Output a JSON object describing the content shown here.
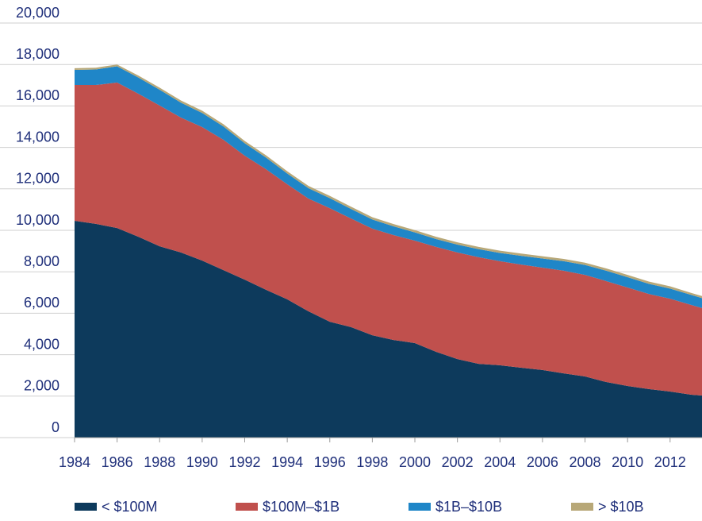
{
  "chart_data": {
    "type": "stacked_area",
    "x": [
      1984,
      1985,
      1986,
      1987,
      1988,
      1989,
      1990,
      1991,
      1992,
      1993,
      1994,
      1995,
      1996,
      1997,
      1998,
      1999,
      2000,
      2001,
      2002,
      2003,
      2004,
      2005,
      2006,
      2007,
      2008,
      2009,
      2010,
      2011,
      2012,
      2013,
      2013.5
    ],
    "series": [
      {
        "name": "< $100M",
        "color": "#0d3a5c",
        "values": [
          10460,
          10310,
          10110,
          9690,
          9230,
          8930,
          8540,
          8080,
          7620,
          7130,
          6670,
          6090,
          5590,
          5330,
          4940,
          4710,
          4560,
          4140,
          3790,
          3560,
          3490,
          3370,
          3260,
          3100,
          2950,
          2680,
          2490,
          2340,
          2220,
          2070,
          2030
        ]
      },
      {
        "name": "$100M–$1B",
        "color": "#c0504d",
        "values": [
          6550,
          6700,
          7020,
          6900,
          6790,
          6510,
          6440,
          6290,
          5980,
          5820,
          5550,
          5440,
          5480,
          5240,
          5140,
          5060,
          4940,
          5060,
          5140,
          5140,
          5020,
          4980,
          4940,
          4950,
          4900,
          4870,
          4750,
          4590,
          4480,
          4330,
          4220
        ]
      },
      {
        "name": "$1B–$10B",
        "color": "#1f86c8",
        "values": [
          730,
          750,
          780,
          780,
          760,
          720,
          680,
          640,
          600,
          560,
          520,
          500,
          480,
          460,
          440,
          420,
          400,
          380,
          380,
          390,
          400,
          420,
          440,
          460,
          480,
          500,
          500,
          490,
          490,
          480,
          480
        ]
      },
      {
        "name": "> $10B",
        "color": "#b8a878",
        "values": [
          80,
          85,
          90,
          95,
          100,
          105,
          110,
          110,
          110,
          110,
          110,
          110,
          110,
          110,
          110,
          110,
          110,
          110,
          110,
          110,
          110,
          110,
          110,
          110,
          110,
          110,
          110,
          110,
          110,
          100,
          100
        ]
      }
    ],
    "xlim": [
      1984,
      2013.5
    ],
    "xticks": [
      1984,
      1986,
      1988,
      1990,
      1992,
      1994,
      1996,
      1998,
      2000,
      2002,
      2004,
      2006,
      2008,
      2010,
      2012
    ],
    "ylim": [
      0,
      20000
    ],
    "yticks": [
      0,
      {
        "value": 2000,
        "label": "2,000"
      },
      {
        "value": 4000,
        "label": "4,000"
      },
      {
        "value": 6000,
        "label": "6,000"
      },
      {
        "value": 8000,
        "label": "8,000"
      },
      {
        "value": 10000,
        "label": "10,000"
      },
      {
        "value": 12000,
        "label": "12,000"
      },
      {
        "value": 14000,
        "label": "14,000"
      },
      {
        "value": 16000,
        "label": "16,000"
      },
      {
        "value": 18000,
        "label": "18,000"
      },
      {
        "value": 20000,
        "label": "20,000"
      }
    ],
    "grid": true,
    "legend": "bottom"
  }
}
